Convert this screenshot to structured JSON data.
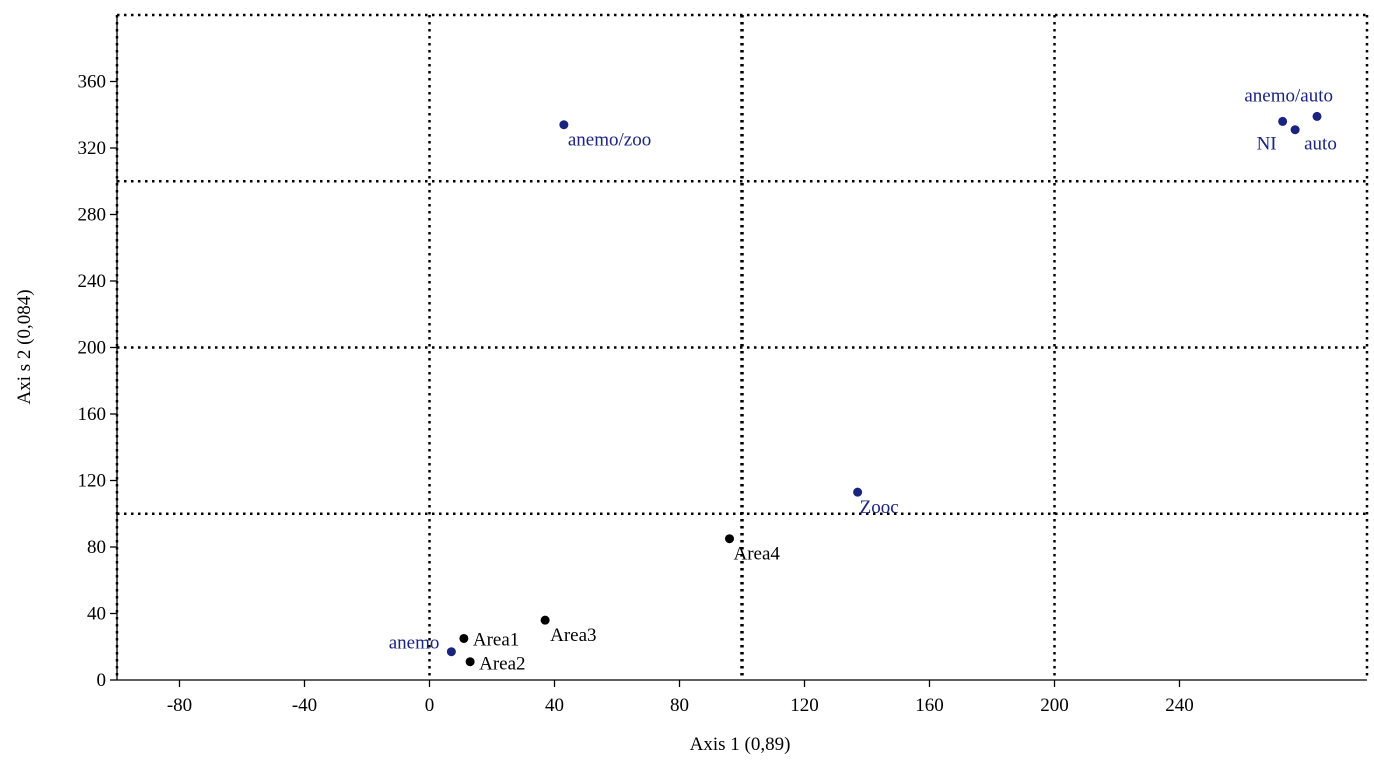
{
  "chart_data": {
    "type": "scatter",
    "xlabel": "Axis  1 (0,89)",
    "ylabel": "Axi s 2 (0,084)",
    "xlim": [
      -100,
      300
    ],
    "ylim": [
      0,
      400
    ],
    "xticks": [
      -80,
      -40,
      0,
      40,
      80,
      120,
      160,
      200,
      240
    ],
    "yticks": [
      0,
      40,
      80,
      120,
      160,
      200,
      240,
      280,
      320,
      360
    ],
    "grid": "dotted",
    "grid_x": [
      0,
      100,
      200
    ],
    "grid_y": [
      100,
      200,
      300
    ],
    "colors": {
      "sites": "#000000",
      "variables": "#1a237e",
      "grid": "#000000"
    },
    "series": [
      {
        "name": "",
        "color": "#000000",
        "points": [
          {
            "label": "Area1",
            "x": 11,
            "y": 25
          },
          {
            "label": "Area2",
            "x": 13,
            "y": 11
          },
          {
            "label": "Area3",
            "x": 37,
            "y": 36
          },
          {
            "label": "Area4",
            "x": 96,
            "y": 85
          }
        ]
      },
      {
        "name": "",
        "color": "#1a237e",
        "points": [
          {
            "label": "anemo",
            "x": 7,
            "y": 17
          },
          {
            "label": "anemo/zoo",
            "x": 43,
            "y": 334
          },
          {
            "label": "Zooc",
            "x": 137,
            "y": 113
          },
          {
            "label": "anemo/auto",
            "x": 284,
            "y": 339
          },
          {
            "label": "NI",
            "x": 273,
            "y": 336
          },
          {
            "label": "auto",
            "x": 277,
            "y": 331
          }
        ]
      }
    ]
  }
}
